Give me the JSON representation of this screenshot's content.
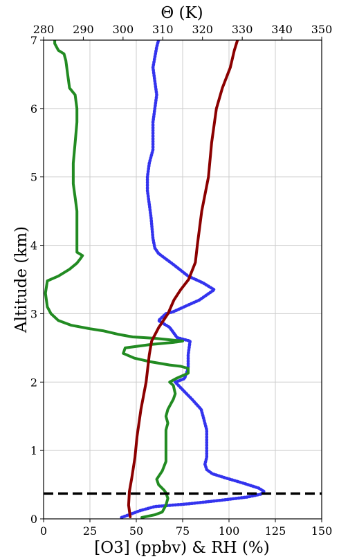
{
  "chart_data": {
    "type": "line",
    "title": "",
    "xlabel": "[O3] (ppbv) & RH (%)",
    "ylabel": "Altitude (km)",
    "x2label": "Θ (K)",
    "xlim": [
      0,
      150
    ],
    "ylim": [
      0,
      7
    ],
    "x2lim": [
      280,
      350
    ],
    "xticks": [
      "0",
      "25",
      "50",
      "75",
      "100",
      "125",
      "150"
    ],
    "x2ticks": [
      "280",
      "290",
      "300",
      "310",
      "320",
      "330",
      "340",
      "350"
    ],
    "yticks": [
      "0",
      "1",
      "2",
      "3",
      "4",
      "5",
      "6",
      "7"
    ],
    "grid": true,
    "reference_line": {
      "y": 0.37,
      "style": "dashed",
      "color": "#000000"
    },
    "series": [
      {
        "key": "ozone",
        "axis": "bottom",
        "color": "#3333ee",
        "style": "dotted",
        "points": [
          [
            42,
            0.02
          ],
          [
            46,
            0.06
          ],
          [
            52,
            0.12
          ],
          [
            60,
            0.18
          ],
          [
            78,
            0.22
          ],
          [
            95,
            0.27
          ],
          [
            110,
            0.32
          ],
          [
            117,
            0.36
          ],
          [
            119,
            0.4
          ],
          [
            116,
            0.45
          ],
          [
            108,
            0.52
          ],
          [
            98,
            0.6
          ],
          [
            91,
            0.66
          ],
          [
            88,
            0.72
          ],
          [
            87,
            0.8
          ],
          [
            88,
            0.9
          ],
          [
            88,
            1.0
          ],
          [
            88,
            1.2
          ],
          [
            88,
            1.3
          ],
          [
            86,
            1.5
          ],
          [
            85,
            1.6
          ],
          [
            80,
            1.75
          ],
          [
            76,
            1.86
          ],
          [
            71,
            2.0
          ],
          [
            76,
            2.05
          ],
          [
            78,
            2.2
          ],
          [
            78,
            2.4
          ],
          [
            79,
            2.6
          ],
          [
            72,
            2.65
          ],
          [
            68,
            2.8
          ],
          [
            62,
            2.9
          ],
          [
            66,
            3.0
          ],
          [
            70,
            3.03
          ],
          [
            84,
            3.2
          ],
          [
            92,
            3.35
          ],
          [
            86,
            3.45
          ],
          [
            78,
            3.55
          ],
          [
            70,
            3.72
          ],
          [
            62,
            3.88
          ],
          [
            60,
            3.96
          ],
          [
            59,
            4.1
          ],
          [
            58,
            4.4
          ],
          [
            57,
            4.6
          ],
          [
            56,
            4.8
          ],
          [
            56,
            5.0
          ],
          [
            57,
            5.2
          ],
          [
            59,
            5.4
          ],
          [
            59,
            5.8
          ],
          [
            60,
            6.0
          ],
          [
            61,
            6.2
          ],
          [
            59,
            6.6
          ],
          [
            61,
            6.9
          ],
          [
            62,
            7.0
          ]
        ]
      },
      {
        "key": "rh",
        "axis": "bottom",
        "color": "#228b22",
        "style": "solid",
        "points": [
          [
            53,
            0.02
          ],
          [
            60,
            0.06
          ],
          [
            64,
            0.1
          ],
          [
            66,
            0.2
          ],
          [
            67,
            0.3
          ],
          [
            66,
            0.38
          ],
          [
            65,
            0.42
          ],
          [
            62,
            0.5
          ],
          [
            61,
            0.58
          ],
          [
            64,
            0.7
          ],
          [
            66,
            0.84
          ],
          [
            66,
            1.0
          ],
          [
            66,
            1.2
          ],
          [
            66,
            1.3
          ],
          [
            67,
            1.4
          ],
          [
            66,
            1.5
          ],
          [
            67,
            1.6
          ],
          [
            68,
            1.65
          ],
          [
            70,
            1.75
          ],
          [
            71,
            1.83
          ],
          [
            70,
            1.95
          ],
          [
            68,
            2.0
          ],
          [
            72,
            2.06
          ],
          [
            78,
            2.13
          ],
          [
            78,
            2.2
          ],
          [
            74,
            2.23
          ],
          [
            68,
            2.25
          ],
          [
            57,
            2.3
          ],
          [
            49,
            2.35
          ],
          [
            43,
            2.42
          ],
          [
            44,
            2.5
          ],
          [
            58,
            2.55
          ],
          [
            70,
            2.58
          ],
          [
            75,
            2.6
          ],
          [
            60,
            2.64
          ],
          [
            48,
            2.66
          ],
          [
            40,
            2.7
          ],
          [
            32,
            2.75
          ],
          [
            25,
            2.78
          ],
          [
            15,
            2.83
          ],
          [
            8,
            2.9
          ],
          [
            4,
            3.0
          ],
          [
            2,
            3.1
          ],
          [
            1,
            3.3
          ],
          [
            2,
            3.48
          ],
          [
            8,
            3.55
          ],
          [
            14,
            3.65
          ],
          [
            18,
            3.74
          ],
          [
            20,
            3.81
          ],
          [
            21,
            3.85
          ],
          [
            18,
            3.9
          ],
          [
            18,
            4.0
          ],
          [
            18,
            4.2
          ],
          [
            18,
            4.5
          ],
          [
            17,
            4.7
          ],
          [
            16,
            4.9
          ],
          [
            16,
            5.0
          ],
          [
            16,
            5.2
          ],
          [
            17,
            5.5
          ],
          [
            18,
            5.8
          ],
          [
            18,
            6.0
          ],
          [
            17,
            6.2
          ],
          [
            14,
            6.3
          ],
          [
            13,
            6.5
          ],
          [
            12,
            6.7
          ],
          [
            11,
            6.8
          ],
          [
            8,
            6.85
          ],
          [
            6,
            6.95
          ],
          [
            6,
            7.0
          ]
        ]
      },
      {
        "key": "theta",
        "axis": "top",
        "color": "#8b0000",
        "style": "solid",
        "points": [
          [
            301.8,
            0.03
          ],
          [
            301.4,
            0.2
          ],
          [
            301.6,
            0.4
          ],
          [
            302.2,
            0.6
          ],
          [
            303.0,
            0.9
          ],
          [
            303.5,
            1.2
          ],
          [
            304.5,
            1.6
          ],
          [
            305.8,
            2.0
          ],
          [
            306.6,
            2.4
          ],
          [
            307.2,
            2.6
          ],
          [
            309.0,
            2.8
          ],
          [
            311.3,
            3.0
          ],
          [
            312.8,
            3.2
          ],
          [
            314.5,
            3.35
          ],
          [
            316.5,
            3.5
          ],
          [
            318.2,
            3.75
          ],
          [
            318.7,
            4.0
          ],
          [
            319.8,
            4.5
          ],
          [
            321.5,
            5.0
          ],
          [
            322.3,
            5.5
          ],
          [
            323.5,
            6.0
          ],
          [
            325.0,
            6.3
          ],
          [
            327.0,
            6.6
          ],
          [
            328.0,
            6.85
          ],
          [
            328.8,
            7.0
          ]
        ]
      }
    ]
  }
}
